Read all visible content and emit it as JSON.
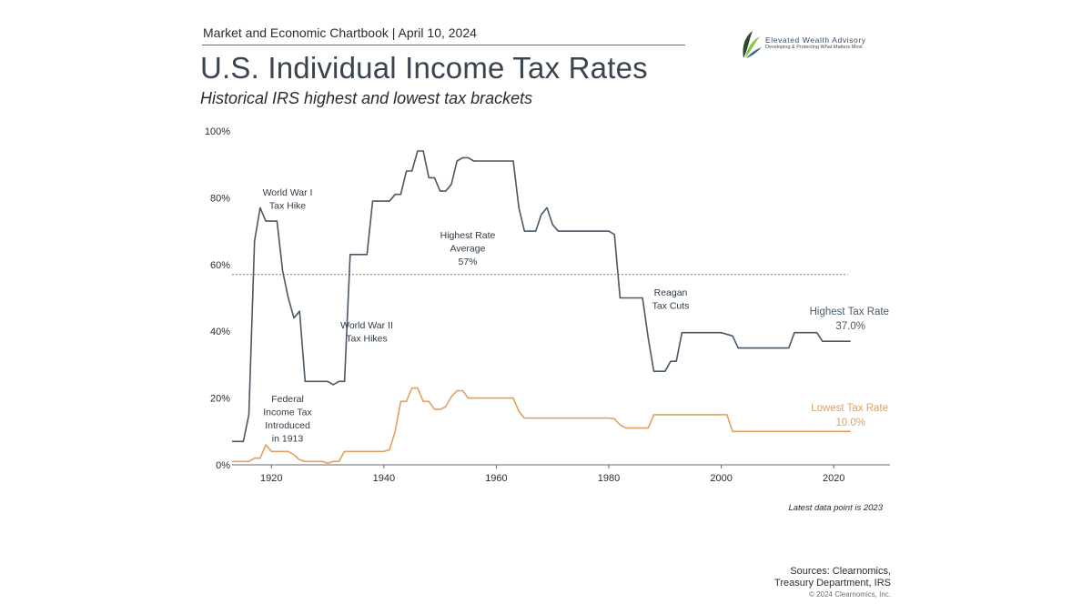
{
  "header": {
    "chartbook": "Market and Economic Chartbook | April 10, 2024",
    "title": "U.S. Individual Income Tax Rates",
    "subtitle": "Historical IRS highest and lowest tax brackets"
  },
  "logo": {
    "name": "Elevated Wealth Advisory",
    "tagline": "Developing & Protecting What Matters Most",
    "colors": [
      "#2f4a2a",
      "#8cc63f",
      "#2f6f8f"
    ]
  },
  "footer": {
    "note": "Latest data point is 2023",
    "sources_lines": [
      "Sources: Clearnomics,",
      "Treasury Department, IRS"
    ],
    "copyright": "© 2024 Clearnomics, Inc."
  },
  "chart_data": {
    "type": "line",
    "xlim": [
      1913,
      2030
    ],
    "ylim": [
      0,
      100
    ],
    "x_ticks": [
      1920,
      1940,
      1960,
      1980,
      2000,
      2020
    ],
    "y_ticks": [
      0,
      20,
      40,
      60,
      80,
      100
    ],
    "y_tick_labels": [
      "0%",
      "20%",
      "40%",
      "60%",
      "80%",
      "100%"
    ],
    "grid": false,
    "series": [
      {
        "name": "Highest Tax Rate",
        "color": "#4a5866",
        "end_label": "37.0%",
        "points": [
          [
            1913,
            7
          ],
          [
            1915,
            7
          ],
          [
            1916,
            15
          ],
          [
            1917,
            67
          ],
          [
            1918,
            77
          ],
          [
            1919,
            73
          ],
          [
            1921,
            73
          ],
          [
            1922,
            58
          ],
          [
            1923,
            50
          ],
          [
            1924,
            44
          ],
          [
            1925,
            46
          ],
          [
            1926,
            25
          ],
          [
            1929,
            25
          ],
          [
            1930,
            25
          ],
          [
            1931,
            24
          ],
          [
            1932,
            25
          ],
          [
            1933,
            25
          ],
          [
            1934,
            63
          ],
          [
            1936,
            63
          ],
          [
            1937,
            63
          ],
          [
            1938,
            79
          ],
          [
            1940,
            79
          ],
          [
            1941,
            79
          ],
          [
            1942,
            81
          ],
          [
            1943,
            81
          ],
          [
            1944,
            88
          ],
          [
            1945,
            88
          ],
          [
            1946,
            94
          ],
          [
            1947,
            94
          ],
          [
            1948,
            86
          ],
          [
            1949,
            86
          ],
          [
            1950,
            82
          ],
          [
            1951,
            82
          ],
          [
            1952,
            84
          ],
          [
            1953,
            91
          ],
          [
            1954,
            92
          ],
          [
            1955,
            92
          ],
          [
            1956,
            91
          ],
          [
            1960,
            91
          ],
          [
            1963,
            91
          ],
          [
            1964,
            77
          ],
          [
            1965,
            70
          ],
          [
            1966,
            70
          ],
          [
            1967,
            70
          ],
          [
            1968,
            75
          ],
          [
            1969,
            77
          ],
          [
            1970,
            72
          ],
          [
            1971,
            70
          ],
          [
            1980,
            70
          ],
          [
            1981,
            69
          ],
          [
            1982,
            50
          ],
          [
            1985,
            50
          ],
          [
            1986,
            50
          ],
          [
            1987,
            38
          ],
          [
            1988,
            28
          ],
          [
            1990,
            28
          ],
          [
            1991,
            31
          ],
          [
            1992,
            31
          ],
          [
            1993,
            39.6
          ],
          [
            1998,
            39.6
          ],
          [
            2000,
            39.6
          ],
          [
            2002,
            38.6
          ],
          [
            2003,
            35
          ],
          [
            2012,
            35
          ],
          [
            2013,
            39.6
          ],
          [
            2017,
            39.6
          ],
          [
            2018,
            37
          ],
          [
            2023,
            37
          ]
        ]
      },
      {
        "name": "Lowest Tax Rate",
        "color": "#e0a060",
        "end_label": "10.0%",
        "points": [
          [
            1913,
            1
          ],
          [
            1916,
            1
          ],
          [
            1917,
            2
          ],
          [
            1918,
            2
          ],
          [
            1919,
            6
          ],
          [
            1920,
            4
          ],
          [
            1923,
            4
          ],
          [
            1924,
            3
          ],
          [
            1925,
            1.5
          ],
          [
            1926,
            1
          ],
          [
            1929,
            1
          ],
          [
            1930,
            0.5
          ],
          [
            1931,
            1
          ],
          [
            1932,
            1
          ],
          [
            1933,
            4
          ],
          [
            1936,
            4
          ],
          [
            1940,
            4
          ],
          [
            1941,
            4.5
          ],
          [
            1942,
            10
          ],
          [
            1943,
            19
          ],
          [
            1944,
            19
          ],
          [
            1945,
            23
          ],
          [
            1946,
            23
          ],
          [
            1947,
            19
          ],
          [
            1948,
            19
          ],
          [
            1949,
            16.6
          ],
          [
            1950,
            16.6
          ],
          [
            1951,
            17.4
          ],
          [
            1952,
            20.4
          ],
          [
            1953,
            22.2
          ],
          [
            1954,
            22.2
          ],
          [
            1955,
            20
          ],
          [
            1960,
            20
          ],
          [
            1963,
            20
          ],
          [
            1964,
            16
          ],
          [
            1965,
            14
          ],
          [
            1970,
            14
          ],
          [
            1980,
            14
          ],
          [
            1981,
            13.8
          ],
          [
            1982,
            12
          ],
          [
            1983,
            11
          ],
          [
            1985,
            11
          ],
          [
            1986,
            11
          ],
          [
            1987,
            11
          ],
          [
            1988,
            15
          ],
          [
            1993,
            15
          ],
          [
            2000,
            15
          ],
          [
            2001,
            15
          ],
          [
            2002,
            10
          ],
          [
            2023,
            10
          ]
        ]
      }
    ],
    "reference_line": {
      "value": 57,
      "x_range": [
        1913,
        2023
      ]
    },
    "annotations": [
      {
        "id": "ww1",
        "lines": [
          "World War I",
          "Tax Hike"
        ]
      },
      {
        "id": "ww2",
        "lines": [
          "World War II",
          "Tax Hikes"
        ]
      },
      {
        "id": "avg",
        "lines": [
          "Highest Rate",
          "Average",
          "57%"
        ]
      },
      {
        "id": "reagan",
        "lines": [
          "Reagan",
          "Tax Cuts"
        ]
      },
      {
        "id": "fed",
        "lines": [
          "Federal",
          "Income Tax",
          "Introduced",
          "in 1913"
        ]
      }
    ]
  }
}
